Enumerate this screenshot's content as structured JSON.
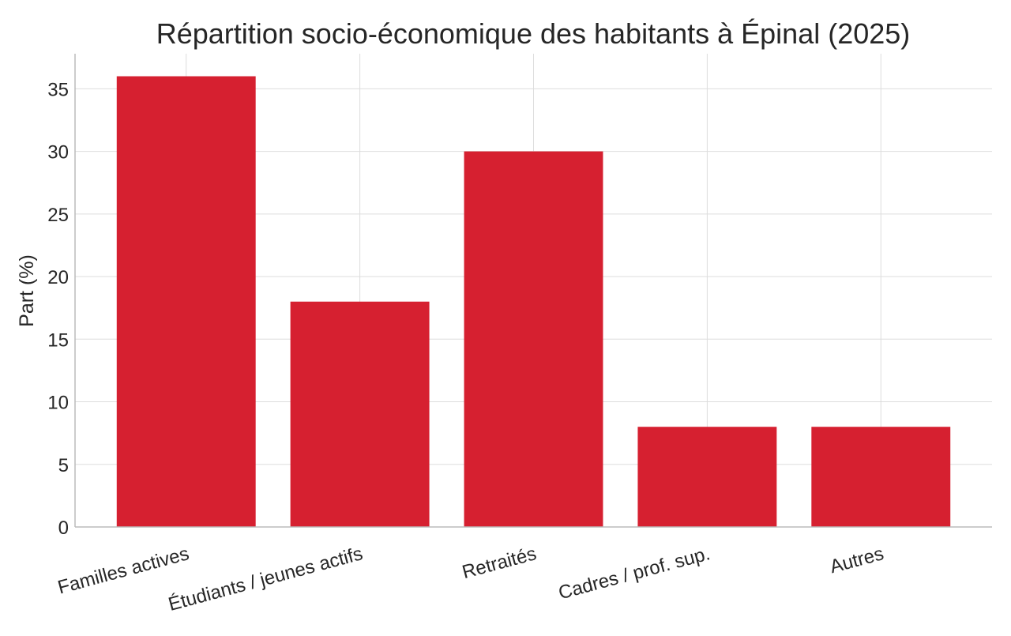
{
  "chart_data": {
    "type": "bar",
    "title": "Répartition socio-économique des habitants à Épinal (2025)",
    "xlabel": "",
    "ylabel": "Part (%)",
    "categories": [
      "Familles actives",
      "Étudiants / jeunes actifs",
      "Retraités",
      "Cadres / prof. sup.",
      "Autres"
    ],
    "values": [
      36,
      18,
      30,
      8,
      8
    ],
    "ylim": [
      0,
      37.8
    ],
    "yticks": [
      0,
      5,
      10,
      15,
      20,
      25,
      30,
      35
    ],
    "grid": true,
    "bar_color": "#d62030",
    "grid_color": "#dddddd",
    "spine_color": "#bbbbbb"
  }
}
